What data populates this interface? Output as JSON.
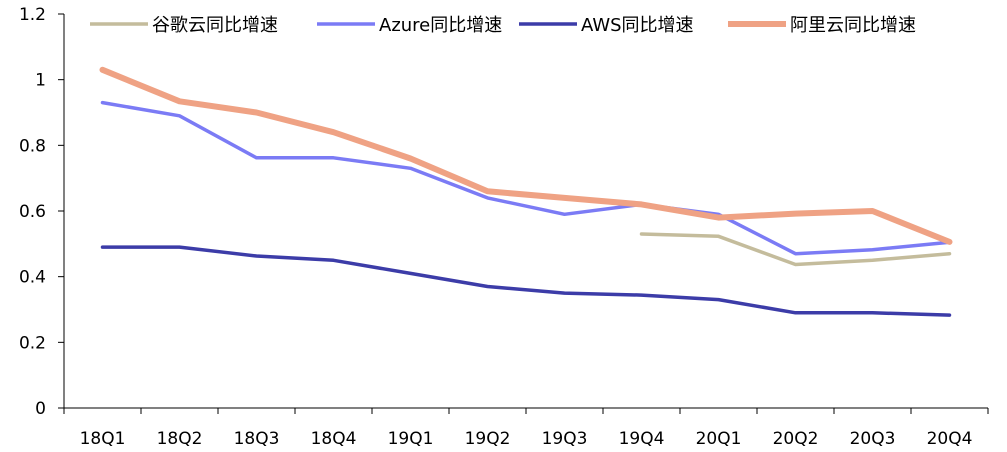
{
  "chart_data": {
    "type": "line",
    "categories": [
      "18Q1",
      "18Q2",
      "18Q3",
      "18Q4",
      "19Q1",
      "19Q2",
      "19Q3",
      "19Q4",
      "20Q1",
      "20Q2",
      "20Q3",
      "20Q4"
    ],
    "ylim": [
      0,
      1.2
    ],
    "yticks": [
      {
        "value": 0,
        "label": "0"
      },
      {
        "value": 0.2,
        "label": "0.2"
      },
      {
        "value": 0.4,
        "label": "0.4"
      },
      {
        "value": 0.6,
        "label": "0.6"
      },
      {
        "value": 0.8,
        "label": "0.8"
      },
      {
        "value": 1.0,
        "label": "1"
      },
      {
        "value": 1.2,
        "label": "1.2"
      }
    ],
    "grid": false,
    "legend_position": "top",
    "series": [
      {
        "name": "谷歌云同比增速",
        "color": "#C4BC9C",
        "values": [
          null,
          null,
          null,
          null,
          null,
          null,
          null,
          0.53,
          0.523,
          0.437,
          0.45,
          0.47
        ]
      },
      {
        "name": "Azure同比增速",
        "color": "#7B7BF5",
        "values": [
          0.93,
          0.89,
          0.762,
          0.762,
          0.73,
          0.64,
          0.59,
          0.62,
          0.59,
          0.47,
          0.482,
          0.505
        ]
      },
      {
        "name": "AWS同比增速",
        "color": "#3C3CA8",
        "values": [
          0.49,
          0.49,
          0.463,
          0.45,
          0.41,
          0.37,
          0.35,
          0.344,
          0.33,
          0.29,
          0.29,
          0.283
        ]
      },
      {
        "name": "阿里云同比增速",
        "color": "#EFA284",
        "values": [
          1.03,
          0.934,
          0.9,
          0.84,
          0.76,
          0.66,
          0.64,
          0.62,
          0.58,
          0.592,
          0.6,
          0.506
        ]
      }
    ]
  }
}
